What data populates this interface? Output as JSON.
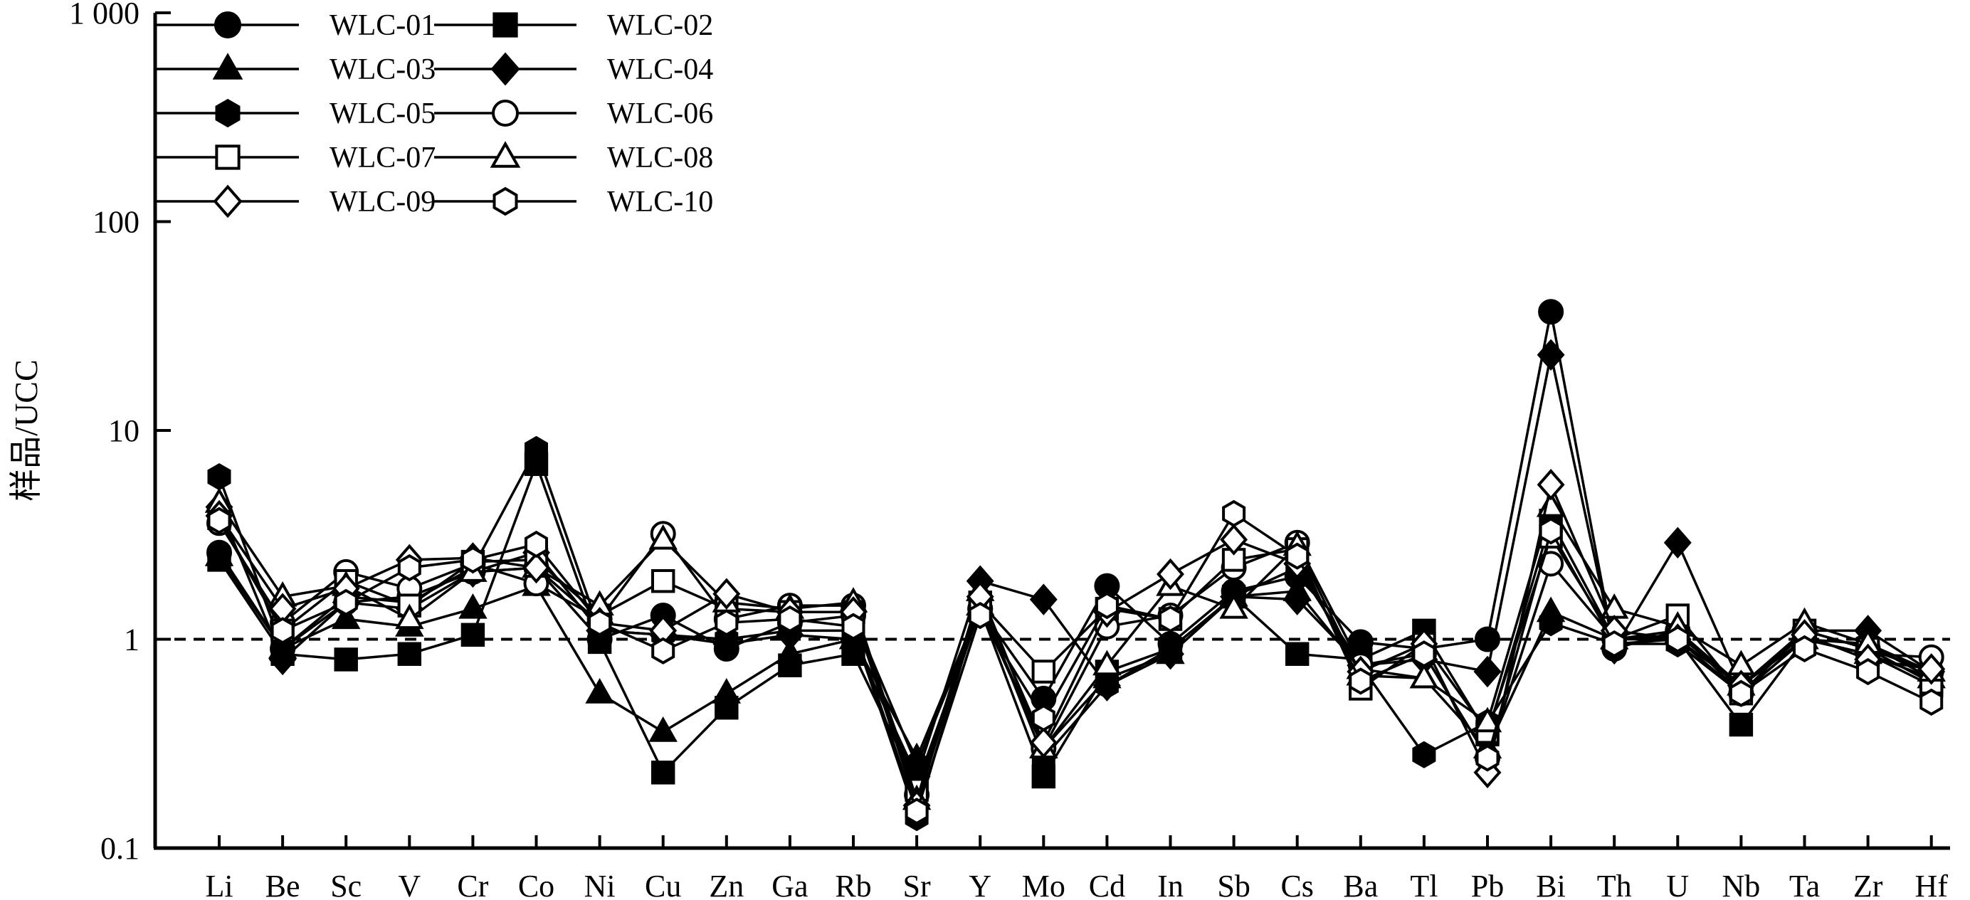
{
  "chart_data": {
    "type": "line",
    "ylabel": "样品/UCC",
    "xlabel": "",
    "yscale": "log",
    "ylim": [
      0.1,
      1000
    ],
    "yticks": [
      {
        "value": 0.1,
        "label": "0.1"
      },
      {
        "value": 1,
        "label": "1"
      },
      {
        "value": 10,
        "label": "10"
      },
      {
        "value": 100,
        "label": "100"
      },
      {
        "value": 1000,
        "label": "1 000"
      }
    ],
    "reference_line": {
      "y": 1,
      "style": "dashed"
    },
    "legend_position": "top-left",
    "categories": [
      "Li",
      "Be",
      "Sc",
      "V",
      "Cr",
      "Co",
      "Ni",
      "Cu",
      "Zn",
      "Ga",
      "Rb",
      "Sr",
      "Y",
      "Mo",
      "Cd",
      "In",
      "Sb",
      "Cs",
      "Ba",
      "Tl",
      "Pb",
      "Bi",
      "Th",
      "U",
      "Nb",
      "Ta",
      "Zr",
      "Hf"
    ],
    "series": [
      {
        "name": "WLC-01",
        "marker": "circle",
        "filled": true,
        "values": [
          2.6,
          0.9,
          1.5,
          1.6,
          2.1,
          2.2,
          1.0,
          1.3,
          0.9,
          1.2,
          1.3,
          0.25,
          1.4,
          0.52,
          1.8,
          0.95,
          1.7,
          2.0,
          0.97,
          0.9,
          1.0,
          37,
          0.9,
          1.1,
          0.6,
          1.1,
          0.9,
          0.7
        ]
      },
      {
        "name": "WLC-02",
        "marker": "square",
        "filled": true,
        "values": [
          2.4,
          0.85,
          0.8,
          0.85,
          1.05,
          6.9,
          0.97,
          0.23,
          0.47,
          0.75,
          0.85,
          0.2,
          1.4,
          0.22,
          0.7,
          0.9,
          1.6,
          0.85,
          0.8,
          1.1,
          0.35,
          3.7,
          1.0,
          1.0,
          0.39,
          1.0,
          0.85,
          0.6
        ]
      },
      {
        "name": "WLC-03",
        "marker": "triangle",
        "filled": true,
        "values": [
          2.5,
          0.9,
          1.25,
          1.15,
          1.4,
          1.8,
          0.55,
          0.36,
          0.55,
          0.85,
          1.0,
          0.27,
          1.45,
          0.3,
          0.65,
          0.85,
          1.6,
          1.7,
          0.72,
          0.65,
          0.3,
          1.35,
          1.0,
          1.05,
          0.6,
          1.0,
          0.85,
          0.65
        ]
      },
      {
        "name": "WLC-04",
        "marker": "diamond",
        "filled": true,
        "values": [
          4.3,
          0.8,
          1.5,
          1.4,
          2.1,
          2.6,
          1.1,
          1.05,
          0.95,
          1.05,
          1.0,
          0.22,
          1.9,
          1.55,
          0.6,
          0.85,
          1.6,
          1.55,
          0.75,
          0.8,
          0.7,
          23,
          0.9,
          2.9,
          0.6,
          1.1,
          1.1,
          0.7
        ]
      },
      {
        "name": "WLC-05",
        "marker": "hexagon",
        "filled": true,
        "values": [
          6.0,
          0.9,
          1.6,
          1.5,
          2.2,
          8.1,
          1.1,
          1.05,
          1.0,
          1.1,
          1.1,
          0.14,
          1.55,
          0.27,
          0.6,
          0.9,
          1.6,
          2.2,
          0.75,
          0.28,
          0.4,
          1.2,
          0.95,
          0.95,
          0.55,
          1.0,
          0.95,
          0.65
        ]
      },
      {
        "name": "WLC-06",
        "marker": "circle",
        "filled": false,
        "values": [
          3.6,
          1.2,
          2.1,
          1.75,
          2.3,
          1.85,
          1.25,
          3.2,
          1.25,
          1.45,
          1.45,
          0.18,
          1.4,
          0.3,
          1.15,
          1.3,
          2.2,
          2.9,
          0.75,
          0.85,
          0.27,
          2.3,
          1.0,
          1.1,
          0.55,
          1.0,
          0.85,
          0.82
        ]
      },
      {
        "name": "WLC-07",
        "marker": "square",
        "filled": false,
        "values": [
          3.8,
          1.1,
          1.9,
          1.45,
          2.35,
          2.4,
          1.3,
          1.9,
          1.4,
          1.35,
          1.35,
          0.19,
          1.5,
          0.7,
          1.4,
          1.25,
          2.4,
          2.7,
          0.58,
          0.95,
          0.36,
          3.1,
          1.0,
          1.3,
          0.55,
          1.1,
          0.9,
          0.62
        ]
      },
      {
        "name": "WLC-08",
        "marker": "triangle",
        "filled": false,
        "values": [
          4.5,
          1.6,
          1.8,
          1.25,
          2.1,
          2.2,
          1.45,
          3.0,
          1.5,
          1.4,
          1.5,
          0.17,
          1.7,
          0.3,
          0.75,
          1.8,
          1.4,
          2.8,
          0.67,
          0.65,
          0.4,
          4.3,
          1.4,
          1.15,
          0.75,
          1.2,
          0.95,
          0.7
        ]
      },
      {
        "name": "WLC-09",
        "marker": "diamond",
        "filled": false,
        "values": [
          3.9,
          1.4,
          1.75,
          2.4,
          2.45,
          2.2,
          1.2,
          1.1,
          1.65,
          1.35,
          1.35,
          0.16,
          1.6,
          0.32,
          1.35,
          2.05,
          3.0,
          2.3,
          0.7,
          0.95,
          0.23,
          5.5,
          1.1,
          1.0,
          0.6,
          1.05,
          0.8,
          0.72
        ]
      },
      {
        "name": "WLC-10",
        "marker": "hexagon",
        "filled": false,
        "values": [
          3.7,
          1.1,
          1.5,
          2.2,
          2.4,
          2.85,
          1.2,
          0.88,
          1.2,
          1.25,
          1.15,
          0.15,
          1.3,
          0.42,
          1.45,
          1.25,
          4.0,
          2.5,
          0.63,
          0.85,
          0.27,
          3.3,
          0.95,
          1.0,
          0.55,
          0.9,
          0.7,
          0.5
        ]
      }
    ]
  }
}
